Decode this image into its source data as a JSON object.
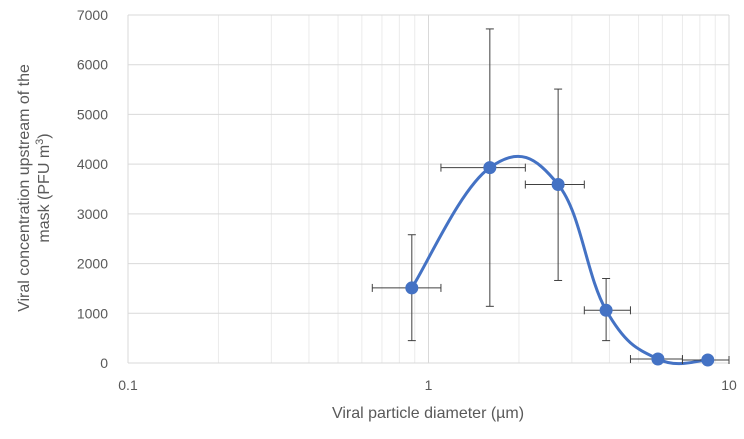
{
  "chart_data": {
    "type": "scatter",
    "title": "",
    "xlabel": "Viral particle diameter (µm)",
    "ylabel_line1": "Viral concentration upstream of the",
    "ylabel_line2": "mask (PFU m",
    "ylabel_sup": "3",
    "ylabel_close": ")",
    "xscale": "log",
    "xlim": [
      0.1,
      10
    ],
    "ylim": [
      0,
      7000
    ],
    "x_ticks": [
      0.1,
      1,
      10
    ],
    "x_tick_labels": [
      "0.1",
      "1",
      "10"
    ],
    "y_ticks": [
      0,
      1000,
      2000,
      3000,
      4000,
      5000,
      6000,
      7000
    ],
    "y_tick_labels": [
      "0",
      "1000",
      "2000",
      "3000",
      "4000",
      "5000",
      "6000",
      "7000"
    ],
    "grid": true,
    "smooth_line": true,
    "colors": {
      "series": "#4472C4",
      "error_bar": "#404040",
      "grid": "#D9D9D9",
      "text": "#595959"
    },
    "series": [
      {
        "points": [
          {
            "x": 0.88,
            "y": 1510,
            "x_err": [
              0.65,
              1.1
            ],
            "y_err": [
              450,
              2580
            ]
          },
          {
            "x": 1.6,
            "y": 3930,
            "x_err": [
              1.1,
              2.1
            ],
            "y_err": [
              1140,
              6720
            ]
          },
          {
            "x": 2.7,
            "y": 3590,
            "x_err": [
              2.1,
              3.3
            ],
            "y_err": [
              1660,
              5510
            ]
          },
          {
            "x": 3.9,
            "y": 1060,
            "x_err": [
              3.3,
              4.7
            ],
            "y_err": [
              450,
              1700
            ]
          },
          {
            "x": 5.8,
            "y": 80,
            "x_err": [
              4.7,
              7.0
            ],
            "y_err": [
              80,
              80
            ]
          },
          {
            "x": 8.5,
            "y": 60,
            "x_err": [
              7.0,
              10.0
            ],
            "y_err": [
              60,
              60
            ]
          }
        ]
      }
    ]
  }
}
